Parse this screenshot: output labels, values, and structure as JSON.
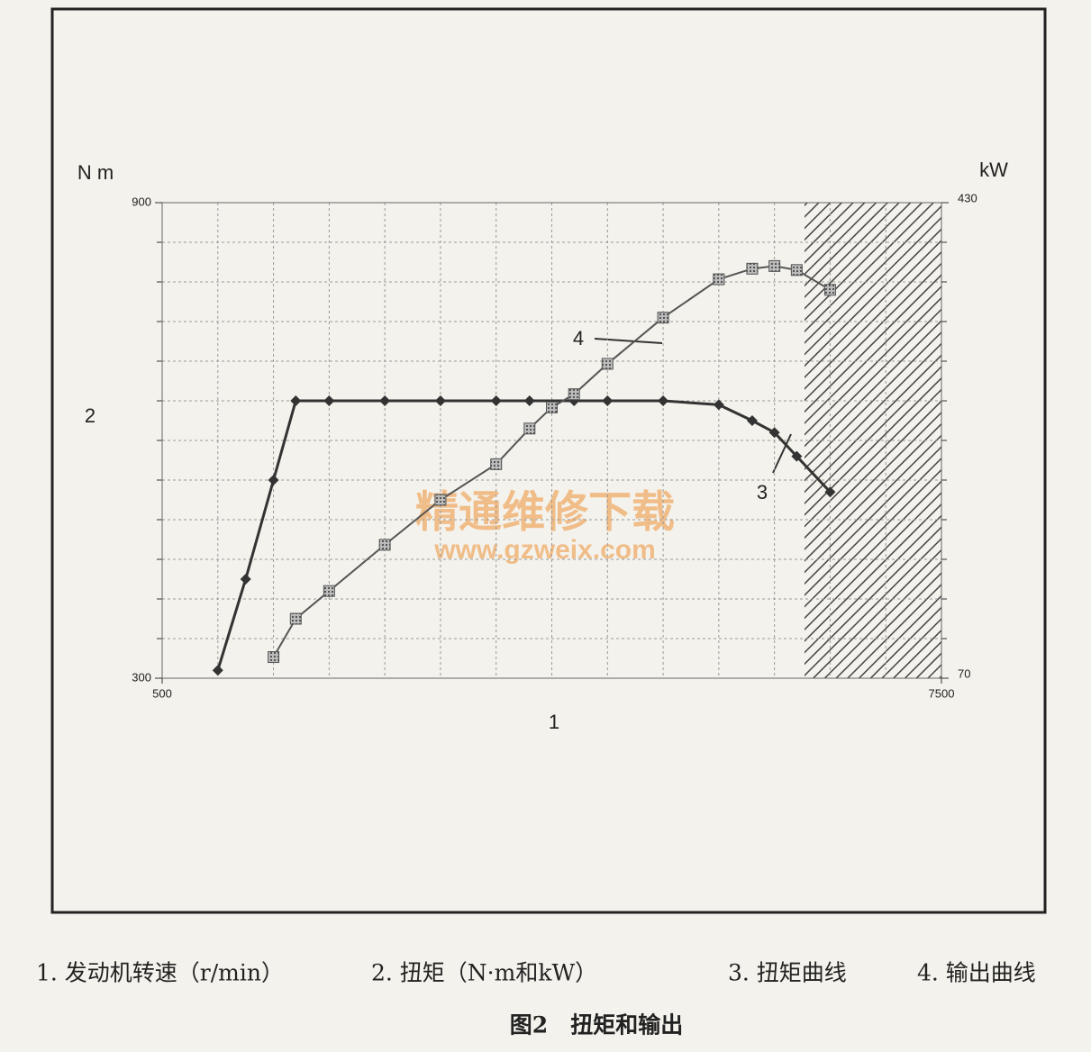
{
  "chart_data": {
    "type": "line",
    "left_unit": "N m",
    "right_unit": "kW",
    "x_axis_label": "1",
    "y_axis_label": "2",
    "xlim": [
      500,
      7500
    ],
    "xticks": [
      500,
      7500
    ],
    "ylim": [
      300,
      900
    ],
    "yticks": [
      300,
      900
    ],
    "y2lim": [
      70,
      430
    ],
    "y2ticks": [
      70,
      430
    ],
    "xgrid": [
      1000,
      1500,
      2000,
      2500,
      3000,
      3500,
      4000,
      4500,
      5000,
      5500,
      6000,
      6500,
      7000
    ],
    "ygrid": [
      350,
      400,
      450,
      500,
      550,
      600,
      650,
      700,
      750,
      800,
      850
    ],
    "grid": true,
    "hatch_from": 6270,
    "series": [
      {
        "name": "3",
        "color": "#333333",
        "x": [
          1000,
          1250,
          1500,
          1700,
          2000,
          2500,
          3000,
          3500,
          3800,
          4200,
          4500,
          5000,
          5500,
          5800,
          6000,
          6200,
          6500
        ],
        "values": [
          310,
          425,
          550,
          650,
          650,
          650,
          650,
          650,
          650,
          650,
          650,
          650,
          645,
          625,
          610,
          580,
          535
        ]
      },
      {
        "name": "4",
        "color": "#555555",
        "axis": "y2",
        "x": [
          1500,
          1700,
          2000,
          2500,
          3000,
          3500,
          3800,
          4000,
          4200,
          4500,
          5000,
          5500,
          5800,
          6000,
          6200,
          6500
        ],
        "values": [
          86,
          115,
          136,
          171,
          205,
          232,
          259,
          275,
          285,
          308,
          343,
          372,
          380,
          382,
          379,
          364
        ]
      }
    ],
    "watermark": [
      "精通维修下载",
      "www.gzweix.com"
    ],
    "caption": [
      "1. 发动机转速（r/min）",
      "2. 扭矩（N·m和kW）",
      "3. 扭矩曲线",
      "4. 输出曲线"
    ],
    "title": "图2　扭矩和输出"
  }
}
